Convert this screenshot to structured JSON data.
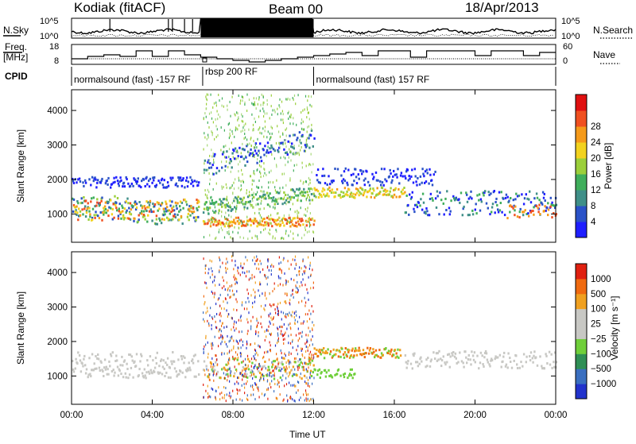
{
  "header": {
    "station": "Kodiak (fitACF)",
    "beam": "Beam 00",
    "date": "18/Apr/2013"
  },
  "side_labels": {
    "nsky": "N.Sky",
    "freq_line1": "Freq.",
    "freq_line2": "[MHz]",
    "cpid": "CPID",
    "nsearch": "N.Search",
    "nave": "Nave"
  },
  "strip_axes": {
    "nsky_top": "10^5",
    "nsky_bottom": "10^0",
    "freq_top": "18",
    "freq_bottom": "8",
    "nave_top": "60",
    "nave_bottom": "0"
  },
  "cpid_programs": [
    {
      "label": "normalsound (fast) -157 RF",
      "start_hour": 0,
      "end_hour": 6.5
    },
    {
      "label": "rbsp 200 RF",
      "start_hour": 6.5,
      "end_hour": 12
    },
    {
      "label": "normalsound (fast) 157 RF",
      "start_hour": 12,
      "end_hour": 24
    }
  ],
  "chart_data": [
    {
      "type": "heatmap",
      "name": "power-panel",
      "ylabel": "Slant Range [km]",
      "xlabel": "Time UT",
      "xlim_hours": [
        0,
        24
      ],
      "ylim": [
        180,
        4600
      ],
      "yticks": [
        "1000",
        "2000",
        "3000",
        "4000"
      ],
      "xticks": [
        "00:00",
        "04:00",
        "08:00",
        "12:00",
        "16:00",
        "20:00",
        "00:00"
      ],
      "colorbar": {
        "label": "Power [dB]",
        "ticks": [
          "4",
          "8",
          "12",
          "16",
          "20",
          "24",
          "28"
        ],
        "colors": [
          "#1e1eff",
          "#2a52c8",
          "#3f8f88",
          "#3fae5b",
          "#9bcf3a",
          "#f2d21e",
          "#f59a1a",
          "#f05020",
          "#e01010"
        ]
      }
    },
    {
      "type": "heatmap",
      "name": "velocity-panel",
      "ylabel": "Slant Range [km]",
      "xlabel": "Time UT",
      "xlim_hours": [
        0,
        24
      ],
      "ylim": [
        180,
        4600
      ],
      "yticks": [
        "1000",
        "2000",
        "3000",
        "4000"
      ],
      "xticks": [
        "00:00",
        "04:00",
        "08:00",
        "12:00",
        "16:00",
        "20:00",
        "00:00"
      ],
      "colorbar": {
        "label": "Velocity [m s⁻¹]",
        "ticks": [
          "1000",
          "500",
          "100",
          "25",
          "−25",
          "−100",
          "−500",
          "−1000"
        ],
        "colors": [
          "#2233cc",
          "#3a6fc0",
          "#2f8f55",
          "#6fcf3a",
          "#c8c8c4",
          "#c8c8c4",
          "#f0a020",
          "#f06a10",
          "#e02010"
        ]
      }
    }
  ]
}
